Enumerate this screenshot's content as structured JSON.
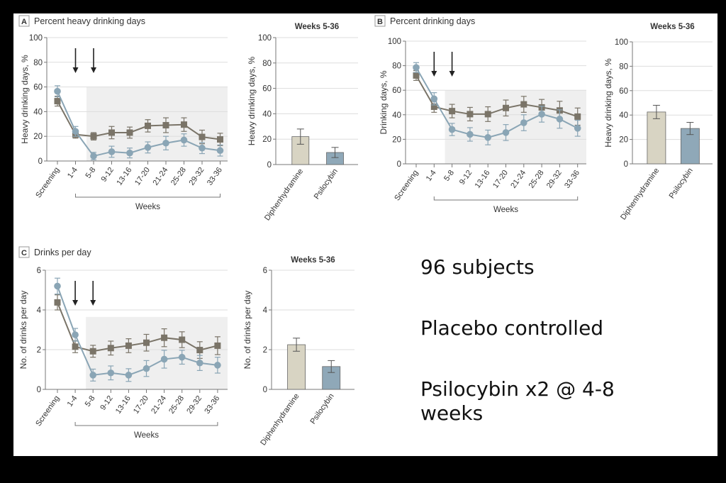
{
  "notes": [
    "96 subjects",
    "Placebo controlled",
    "Psilocybin x2 @ 4-8 weeks"
  ],
  "colors": {
    "diphenhydramine_line": "#7a7468",
    "psilocybin_line": "#8aa5b5",
    "diphenhydramine_bar": "#d8d4c3",
    "psilocybin_bar": "#8fa8b8",
    "shade": "#efefef",
    "grid": "#dddddd",
    "axis": "#777777",
    "text": "#333333"
  },
  "chart_data": [
    {
      "id": "A",
      "type": "line",
      "panel_letter": "A",
      "title": "Percent heavy drinking days",
      "ylabel": "Heavy drinking days, %",
      "xlabel": "Weeks",
      "ylim": [
        0,
        100
      ],
      "yticks": [
        0,
        20,
        40,
        60,
        80,
        100
      ],
      "categories": [
        "Screening",
        "1-4",
        "5-8",
        "9-12",
        "13-16",
        "17-20",
        "21-24",
        "25-28",
        "29-32",
        "33-36"
      ],
      "dose_arrows_at": [
        "1-4",
        "5-8"
      ],
      "shaded_region": {
        "from": "5-8",
        "to": "33-36",
        "ymax": 60
      },
      "series": [
        {
          "name": "Diphenhydramine",
          "marker": "square",
          "values": [
            48.5,
            21.5,
            20,
            23,
            23,
            28.5,
            29,
            29.5,
            19.5,
            17.5
          ],
          "err": [
            4,
            3,
            3,
            5,
            4.5,
            5,
            6,
            5.5,
            5.5,
            5
          ]
        },
        {
          "name": "Psilocybin",
          "marker": "circle",
          "values": [
            56.5,
            24,
            4,
            7.5,
            6.5,
            11,
            14.5,
            17,
            10.5,
            8.5
          ],
          "err": [
            4.5,
            4,
            3,
            4.5,
            4,
            4.5,
            5.5,
            5,
            4.5,
            4.5
          ]
        }
      ]
    },
    {
      "id": "A-bar",
      "type": "bar",
      "title": "Weeks 5-36",
      "ylabel": "Heavy drinking days, %",
      "ylim": [
        0,
        100
      ],
      "yticks": [
        0,
        20,
        40,
        60,
        80,
        100
      ],
      "categories": [
        "Diphenhydramine",
        "Psilocybin"
      ],
      "values": [
        22,
        9.5
      ],
      "err": [
        6,
        4
      ]
    },
    {
      "id": "B",
      "type": "line",
      "panel_letter": "B",
      "title": "Percent drinking days",
      "ylabel": "Drinking days, %",
      "xlabel": "Weeks",
      "ylim": [
        0,
        100
      ],
      "yticks": [
        0,
        20,
        40,
        60,
        80,
        100
      ],
      "categories": [
        "Screening",
        "1-4",
        "5-8",
        "9-12",
        "13-16",
        "17-20",
        "21-24",
        "25-28",
        "29-32",
        "33-36"
      ],
      "dose_arrows_at": [
        "1-4",
        "5-8"
      ],
      "shaded_region": {
        "from": "5-8",
        "to": "33-36",
        "ymax": 60
      },
      "series": [
        {
          "name": "Diphenhydramine",
          "marker": "square",
          "values": [
            72,
            46.5,
            43,
            40.5,
            40.5,
            45.5,
            48.5,
            46,
            43.5,
            38.5
          ],
          "err": [
            4,
            4.5,
            5.5,
            5.5,
            6,
            6.5,
            6.5,
            6.5,
            7.5,
            7
          ]
        },
        {
          "name": "Psilocybin",
          "marker": "circle",
          "values": [
            78.5,
            53,
            28,
            24,
            21.5,
            25.5,
            33.5,
            40.5,
            36.5,
            29
          ],
          "err": [
            4,
            5,
            5,
            5.5,
            6,
            6.5,
            6.5,
            6.5,
            7.5,
            6.5
          ]
        }
      ]
    },
    {
      "id": "B-bar",
      "type": "bar",
      "title": "Weeks 5-36",
      "ylabel": "Heavy drinking days, %",
      "ylim": [
        0,
        100
      ],
      "yticks": [
        0,
        20,
        40,
        60,
        80,
        100
      ],
      "categories": [
        "Diphenhydramine",
        "Psilocybin"
      ],
      "values": [
        42.5,
        29
      ],
      "err": [
        5.5,
        5
      ]
    },
    {
      "id": "C",
      "type": "line",
      "panel_letter": "C",
      "title": "Drinks per day",
      "ylabel": "No. of drinks per day",
      "xlabel": "Weeks",
      "ylim": [
        0,
        6
      ],
      "yticks": [
        0,
        2,
        4,
        6
      ],
      "categories": [
        "Screening",
        "1-4",
        "5-8",
        "9-12",
        "13-16",
        "17-20",
        "21-24",
        "25-28",
        "29-32",
        "33-36"
      ],
      "dose_arrows_at": [
        "1-4",
        "5-8"
      ],
      "shaded_region": {
        "from": "5-8",
        "to": "33-36",
        "ymax": 3.65
      },
      "series": [
        {
          "name": "Diphenhydramine",
          "marker": "square",
          "values": [
            4.38,
            2.15,
            1.92,
            2.08,
            2.2,
            2.35,
            2.6,
            2.5,
            1.98,
            2.2
          ],
          "err": [
            0.38,
            0.3,
            0.3,
            0.35,
            0.35,
            0.42,
            0.45,
            0.4,
            0.42,
            0.45
          ]
        },
        {
          "name": "Psilocybin",
          "marker": "circle",
          "values": [
            5.2,
            2.75,
            0.72,
            0.83,
            0.72,
            1.05,
            1.52,
            1.62,
            1.33,
            1.22
          ],
          "err": [
            0.4,
            0.32,
            0.3,
            0.35,
            0.32,
            0.4,
            0.45,
            0.35,
            0.38,
            0.4
          ]
        }
      ]
    },
    {
      "id": "C-bar",
      "type": "bar",
      "title": "Weeks 5-36",
      "ylabel": "No. of drinks per day",
      "ylim": [
        0,
        6
      ],
      "yticks": [
        0,
        2,
        4,
        6
      ],
      "categories": [
        "Diphenhydramine",
        "Psilocybin"
      ],
      "values": [
        2.25,
        1.15
      ],
      "err": [
        0.33,
        0.3
      ]
    }
  ]
}
